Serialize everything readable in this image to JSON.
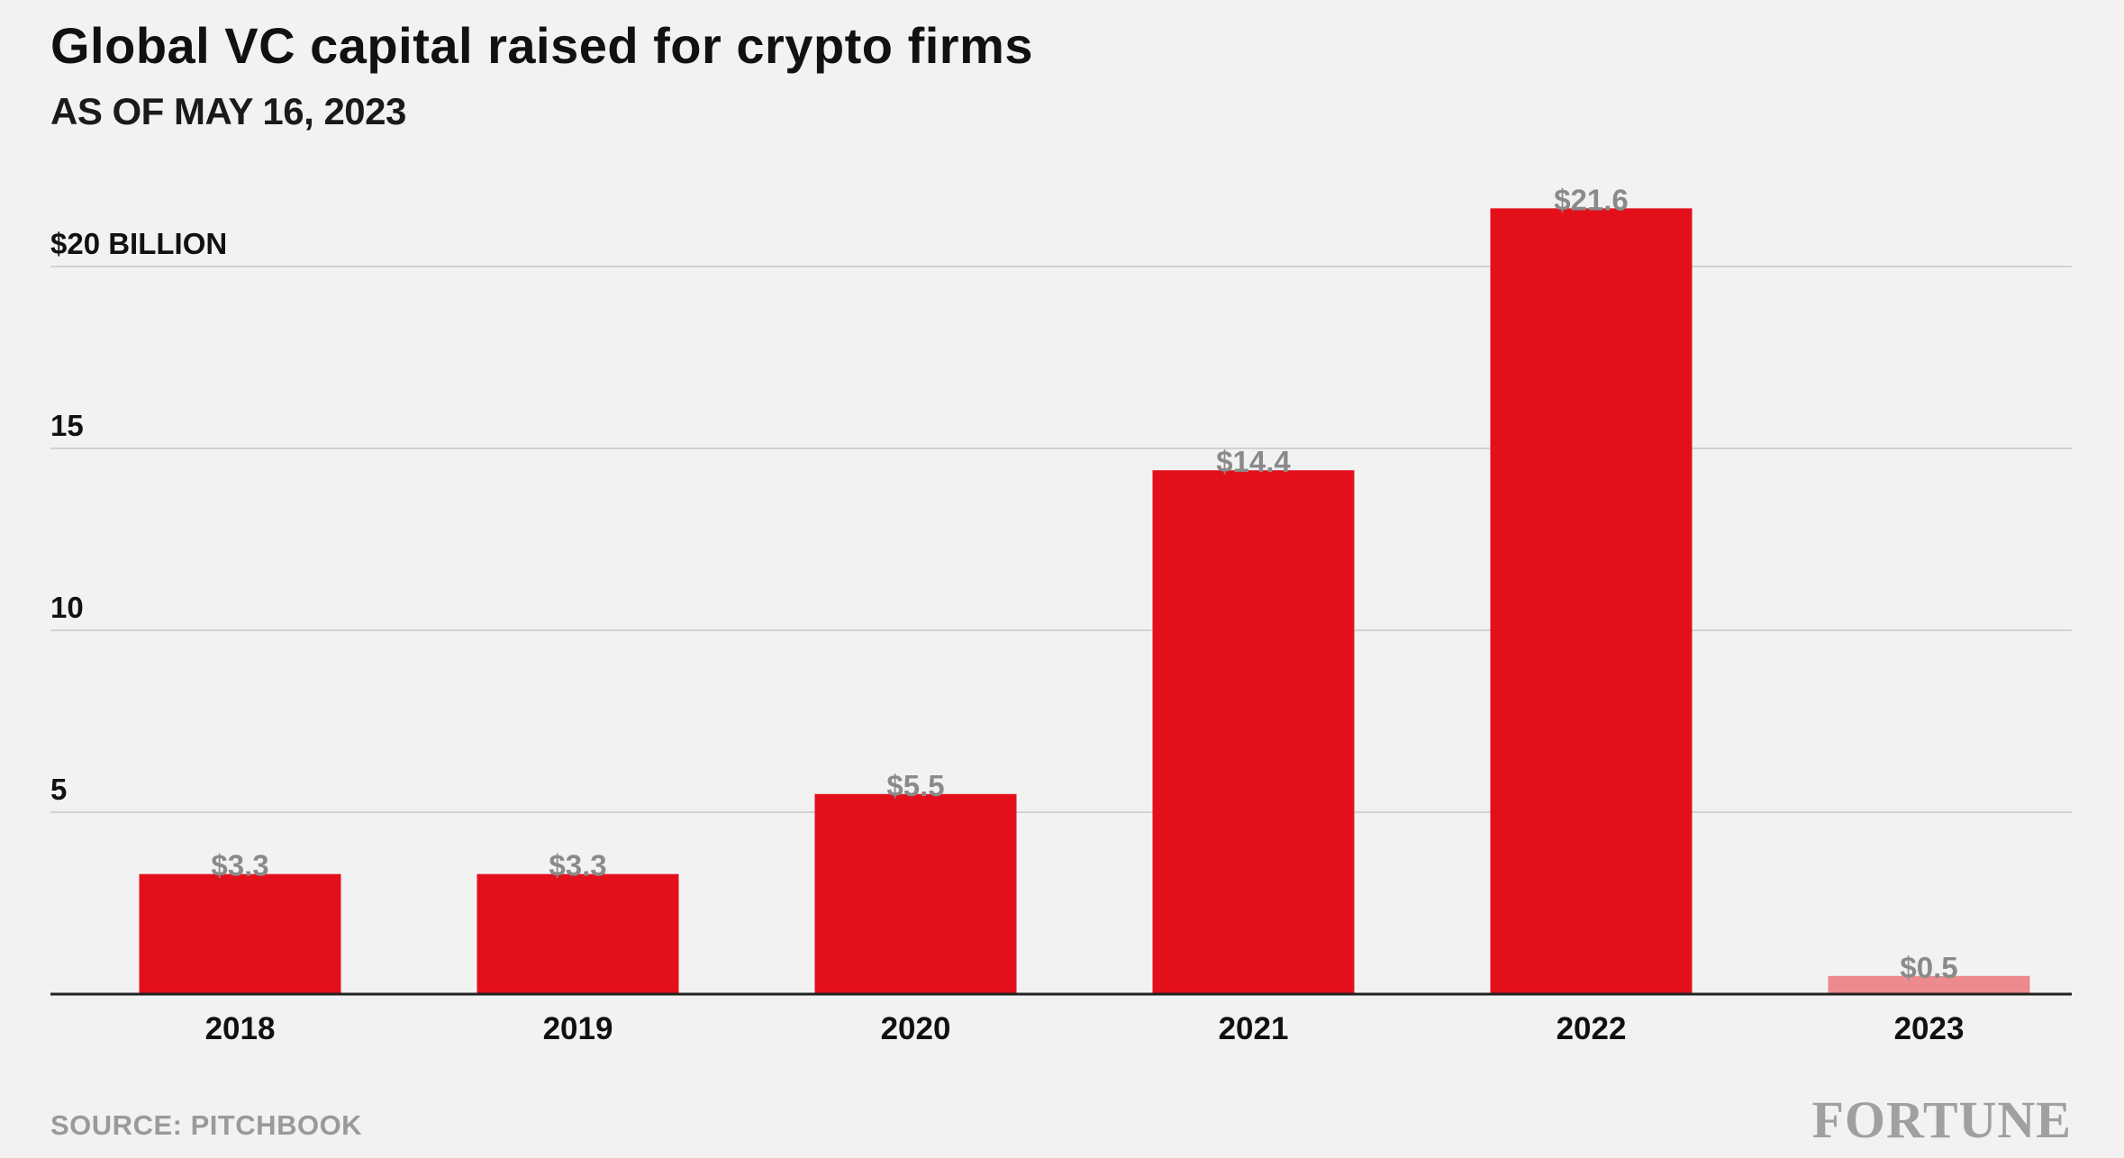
{
  "header": {
    "title": "Global VC capital raised for crypto firms",
    "subtitle": "AS OF MAY 16, 2023"
  },
  "footer": {
    "source": "SOURCE: PITCHBOOK",
    "brand": "FORTUNE"
  },
  "colors": {
    "bar": "#e3101c",
    "bar_partial": "#ed8a8e",
    "grid": "#d2d2d2",
    "axis": "#222222",
    "value_label": "#8a8a8a",
    "background": "#f2f2f2"
  },
  "chart_data": {
    "type": "bar",
    "categories": [
      "2018",
      "2019",
      "2020",
      "2021",
      "2022",
      "2023"
    ],
    "values": [
      3.3,
      3.3,
      5.5,
      14.4,
      21.6,
      0.5
    ],
    "value_labels": [
      "$3.3",
      "$3.3",
      "$5.5",
      "$14.4",
      "$21.6",
      "$0.5"
    ],
    "partial_year": [
      false,
      false,
      false,
      false,
      false,
      true
    ],
    "y_ticks": [
      {
        "value": 5,
        "label": "5"
      },
      {
        "value": 10,
        "label": "10"
      },
      {
        "value": 15,
        "label": "15"
      },
      {
        "value": 20,
        "label": "$20 BILLION"
      }
    ],
    "ylim": [
      0,
      22
    ],
    "grid": true,
    "legend": "none"
  }
}
